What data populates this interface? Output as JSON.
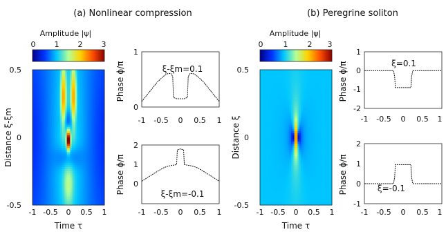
{
  "colormap": [
    "#00008b",
    "#0033ff",
    "#00c8ff",
    "#b4ff96",
    "#ffd200",
    "#ff5000",
    "#8b0000"
  ],
  "panels": [
    {
      "id": "a",
      "caption": "(a) Nonlinear compression",
      "colorbar": {
        "label": "Amplitude |ψ|",
        "ticks": [
          "0",
          "1",
          "2",
          "3"
        ],
        "range": [
          0,
          3
        ]
      },
      "heatmap": {
        "type": "heatmap",
        "field": "compression",
        "xlabel": "Time τ",
        "ylabel": "Distance ξ-ξm",
        "xticks": [
          "-1",
          "-0.5",
          "0",
          "0.5",
          "1"
        ],
        "yticks": [
          "0.5",
          "0",
          "-0.5"
        ],
        "xlim": [
          -1,
          1
        ],
        "ylim": [
          -0.5,
          0.5
        ]
      },
      "phase_top": {
        "type": "line",
        "annotation": "ξ-ξm=0.1",
        "ylabel": "Phase ϕ/π",
        "xticks": [
          "-1",
          "-0.5",
          "0",
          "0.5",
          "1"
        ],
        "yticks": [
          "1",
          "0"
        ],
        "xlim": [
          -1,
          1
        ],
        "ylim": [
          0,
          2
        ],
        "x": [
          -1,
          -0.8,
          -0.6,
          -0.45,
          -0.35,
          -0.25,
          -0.2,
          -0.18,
          -0.1,
          0,
          0.1,
          0.18,
          0.2,
          0.25,
          0.35,
          0.45,
          0.6,
          0.8,
          1
        ],
        "y": [
          0.2,
          0.55,
          0.9,
          1.1,
          1.2,
          1.22,
          1.1,
          0.35,
          0.3,
          0.3,
          0.3,
          0.35,
          1.1,
          1.22,
          1.2,
          1.1,
          0.9,
          0.55,
          0.2
        ]
      },
      "phase_bottom": {
        "type": "line",
        "annotation": "ξ-ξm=-0.1",
        "ylabel": "Phase ϕ/π",
        "xticks": [
          "-1",
          "-0.5",
          "0",
          "0.5",
          "1"
        ],
        "yticks": [
          "2",
          "1",
          "0"
        ],
        "xlim": [
          -1,
          1
        ],
        "ylim": [
          0,
          3
        ],
        "x": [
          -1,
          -0.8,
          -0.6,
          -0.45,
          -0.35,
          -0.25,
          -0.15,
          -0.1,
          -0.08,
          0,
          0.08,
          0.1,
          0.15,
          0.25,
          0.35,
          0.45,
          0.6,
          0.8,
          1
        ],
        "y": [
          1.15,
          1.4,
          1.65,
          1.82,
          1.9,
          1.95,
          1.98,
          2.0,
          2.75,
          2.8,
          2.75,
          2.0,
          1.98,
          1.95,
          1.9,
          1.82,
          1.65,
          1.4,
          1.15
        ]
      }
    },
    {
      "id": "b",
      "caption": "(b) Peregrine soliton",
      "colorbar": {
        "label": "Amplitude |ψ|",
        "ticks": [
          "0",
          "1",
          "2",
          "3"
        ],
        "range": [
          0,
          3
        ]
      },
      "heatmap": {
        "type": "heatmap",
        "field": "peregrine",
        "xlabel": "Time τ",
        "ylabel": "Distance ξ",
        "xticks": [
          "-1",
          "-0.5",
          "0",
          "0.5",
          "1"
        ],
        "yticks": [
          "0.5",
          "0",
          "-0.5"
        ],
        "xlim": [
          -1,
          1
        ],
        "ylim": [
          -0.5,
          0.5
        ]
      },
      "phase_top": {
        "type": "line",
        "annotation": "ξ=0.1",
        "ylabel": "Phase ϕ/π",
        "xticks": [
          "-1",
          "-0.5",
          "0",
          "0.5",
          "1"
        ],
        "yticks": [
          "1",
          "0",
          "-1",
          "-2"
        ],
        "xlim": [
          -1,
          1
        ],
        "ylim": [
          -2,
          1
        ],
        "x": [
          -1,
          -0.5,
          -0.25,
          -0.22,
          -0.2,
          0,
          0.2,
          0.22,
          0.25,
          0.5,
          1
        ],
        "y": [
          0,
          0,
          0,
          -0.3,
          -0.9,
          -0.9,
          -0.9,
          -0.3,
          0,
          0,
          0
        ]
      },
      "phase_bottom": {
        "type": "line",
        "annotation": "ξ=-0.1",
        "ylabel": "Phase ϕ/π",
        "xticks": [
          "-1",
          "-0.5",
          "0",
          "0.5",
          "1"
        ],
        "yticks": [
          "2",
          "1",
          "0",
          "-1"
        ],
        "xlim": [
          -1,
          1
        ],
        "ylim": [
          -1,
          2
        ],
        "x": [
          -1,
          -0.5,
          -0.25,
          -0.22,
          -0.2,
          0,
          0.2,
          0.22,
          0.25,
          0.5,
          1
        ],
        "y": [
          0,
          0,
          0,
          0.3,
          0.95,
          0.95,
          0.95,
          0.3,
          0,
          0,
          0
        ]
      }
    }
  ]
}
